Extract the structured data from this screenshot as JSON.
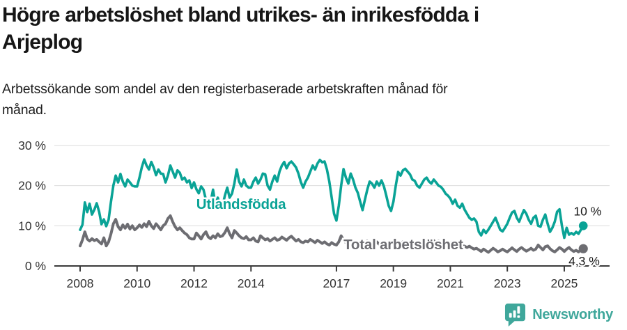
{
  "header": {
    "title_lines": [
      "Högre arbetslöshet bland utrikes- än inrikesfödda i",
      "Arjeplog"
    ],
    "subtitle_lines": [
      "Arbetssökande som andel av den registerbaserade arbetskraften månad för",
      "månad."
    ]
  },
  "chart_data": {
    "type": "line",
    "title": "Högre arbetslöshet bland utrikes- än inrikesfödda i Arjeplog",
    "subtitle": "Arbetssökande som andel av den registerbaserade arbetskraften månad för månad.",
    "unit": "%",
    "grid": "horizontal",
    "x": {
      "start_year": 2008,
      "start_month": 1,
      "end_year": 2025,
      "end_month": 9,
      "frequency": "monthly"
    },
    "x_tick_years": [
      2008,
      2010,
      2012,
      2014,
      2017,
      2019,
      2021,
      2023,
      2025
    ],
    "x_tick_labels": [
      "2008",
      "2010",
      "2012",
      "2014",
      "2017",
      "2019",
      "2021",
      "2023",
      "2025"
    ],
    "y_tick_values": [
      0,
      10,
      20,
      30
    ],
    "y_tick_labels": [
      "0 %",
      "10 %",
      "20 %",
      "30 %"
    ],
    "ylim": [
      0,
      32
    ],
    "axis_color": "#3a3a3a",
    "grid_color": "#dcdcdc",
    "axis_text_color": "#333333",
    "annotation_text_color": "#1a1a1a",
    "series": [
      {
        "name": "Utlandsfödda",
        "color": "#0aa396",
        "line_width": 3.6,
        "dot_radius": 6.3,
        "end_label": "10 %",
        "label_pos": {
          "year": 2012.08,
          "pct": 14.2
        },
        "end_label_pos": {
          "year": 2025.33,
          "pct": 12.55
        },
        "values": [
          9.0,
          10.3,
          15.8,
          13.4,
          15.5,
          12.8,
          14.0,
          15.6,
          13.5,
          10.4,
          11.6,
          9.9,
          11.5,
          16.0,
          20.0,
          22.5,
          20.8,
          22.9,
          21.0,
          19.8,
          21.5,
          20.8,
          20.0,
          19.8,
          19.8,
          22.0,
          24.6,
          26.5,
          25.0,
          24.0,
          25.9,
          24.5,
          22.6,
          24.0,
          23.0,
          22.9,
          20.8,
          22.5,
          25.0,
          23.5,
          22.0,
          23.8,
          23.2,
          21.5,
          22.0,
          20.8,
          21.3,
          19.4,
          20.8,
          19.1,
          18.1,
          19.8,
          19.0,
          16.5,
          14.2,
          16.0,
          19.0,
          15.2,
          17.0,
          15.0,
          15.0,
          17.5,
          19.5,
          17.0,
          18.0,
          20.5,
          24.0,
          21.0,
          19.8,
          21.5,
          20.0,
          19.5,
          19.5,
          21.0,
          22.0,
          20.5,
          21.5,
          23.0,
          22.8,
          20.0,
          19.0,
          21.0,
          22.5,
          21.0,
          23.5,
          25.0,
          25.9,
          24.3,
          25.5,
          26.0,
          25.3,
          24.5,
          23.0,
          20.9,
          19.5,
          21.0,
          22.0,
          23.5,
          25.0,
          24.0,
          25.5,
          26.4,
          25.8,
          26.0,
          24.0,
          21.0,
          17.0,
          13.0,
          11.3,
          15.0,
          20.0,
          24.1,
          22.0,
          20.5,
          23.0,
          21.5,
          19.5,
          18.2,
          16.0,
          13.9,
          16.5,
          19.0,
          21.0,
          20.5,
          19.5,
          21.0,
          20.0,
          21.3,
          19.8,
          17.5,
          15.0,
          13.7,
          16.0,
          20.0,
          23.4,
          22.5,
          23.8,
          24.2,
          23.5,
          22.8,
          21.5,
          21.2,
          20.0,
          19.5,
          20.5,
          21.5,
          22.0,
          21.0,
          20.5,
          21.5,
          20.8,
          20.0,
          19.7,
          19.0,
          18.0,
          17.5,
          16.8,
          15.5,
          16.5,
          15.0,
          14.5,
          15.5,
          14.0,
          13.0,
          12.0,
          11.5,
          11.8,
          11.0,
          8.5,
          7.6,
          9.0,
          8.2,
          9.0,
          10.0,
          11.0,
          12.0,
          10.5,
          9.0,
          8.6,
          9.5,
          10.5,
          12.0,
          13.3,
          13.7,
          12.0,
          11.0,
          12.5,
          13.9,
          13.0,
          11.5,
          10.5,
          12.0,
          12.5,
          10.0,
          9.8,
          11.5,
          12.8,
          10.5,
          8.5,
          9.5,
          11.0,
          13.5,
          14.1,
          10.0,
          7.0,
          9.5,
          7.8,
          8.2,
          7.8,
          8.5,
          8.0,
          9.0,
          10.0
        ]
      },
      {
        "name": "Total arbetslöshet",
        "color": "#6d6d72",
        "line_width": 4,
        "dot_radius": 6.6,
        "end_label": "4,3 %",
        "label_pos": {
          "year": 2017.25,
          "pct": 4.15
        },
        "end_label_pos": {
          "year": 2025.15,
          "pct": 0.15
        },
        "values": [
          5.0,
          6.5,
          8.5,
          6.7,
          6.2,
          6.8,
          6.3,
          6.6,
          6.0,
          5.5,
          7.0,
          5.0,
          6.0,
          8.0,
          10.5,
          11.6,
          9.8,
          9.0,
          10.2,
          9.4,
          10.4,
          9.2,
          10.0,
          9.0,
          9.5,
          10.2,
          9.6,
          10.5,
          9.8,
          11.1,
          10.0,
          9.3,
          10.5,
          9.8,
          9.0,
          10.0,
          10.5,
          11.8,
          12.5,
          11.0,
          9.8,
          9.0,
          9.5,
          8.8,
          8.2,
          7.8,
          7.0,
          6.7,
          6.7,
          8.2,
          7.5,
          6.7,
          7.8,
          8.5,
          7.2,
          6.8,
          7.5,
          7.0,
          8.0,
          7.3,
          7.5,
          8.3,
          9.5,
          8.0,
          7.0,
          8.8,
          8.2,
          7.5,
          7.0,
          6.8,
          7.3,
          6.5,
          6.5,
          7.0,
          6.2,
          6.0,
          7.5,
          7.0,
          6.5,
          6.8,
          6.2,
          6.6,
          7.0,
          6.4,
          6.6,
          7.2,
          6.8,
          6.4,
          7.0,
          7.4,
          6.8,
          6.2,
          6.6,
          6.0,
          5.8,
          6.2,
          6.0,
          6.6,
          6.2,
          5.8,
          6.4,
          6.0,
          5.6,
          6.0,
          5.5,
          5.2,
          5.8,
          5.4,
          5.2,
          6.0,
          7.5,
          6.5,
          5.8,
          6.2,
          5.6,
          5.3,
          5.8,
          5.5,
          6.0,
          5.4,
          5.6,
          6.2,
          5.8,
          5.2,
          5.6,
          6.0,
          5.4,
          5.8,
          5.2,
          5.6,
          6.0,
          5.5,
          5.8,
          6.3,
          5.9,
          5.5,
          6.0,
          5.6,
          5.2,
          5.7,
          6.1,
          5.6,
          5.9,
          5.4,
          5.8,
          6.2,
          6.6,
          6.2,
          6.6,
          6.3,
          5.9,
          6.2,
          5.8,
          5.5,
          5.9,
          5.5,
          5.7,
          6.0,
          5.6,
          5.3,
          5.6,
          5.2,
          4.9,
          4.6,
          4.9,
          4.5,
          4.2,
          4.4,
          4.0,
          3.6,
          4.2,
          3.8,
          3.4,
          3.9,
          4.4,
          4.0,
          3.5,
          3.8,
          4.2,
          3.8,
          3.5,
          4.0,
          4.5,
          4.0,
          3.6,
          4.2,
          4.6,
          4.1,
          3.7,
          4.0,
          4.4,
          3.9,
          4.2,
          5.2,
          4.6,
          4.0,
          4.8,
          5.0,
          4.3,
          3.8,
          3.5,
          4.0,
          4.6,
          4.2,
          3.6,
          4.2,
          4.6,
          4.0,
          3.6,
          3.9,
          3.5,
          4.0,
          4.3
        ]
      }
    ]
  },
  "footer": {
    "brand": "Newsworthy",
    "brand_color": "#3fa79b"
  }
}
